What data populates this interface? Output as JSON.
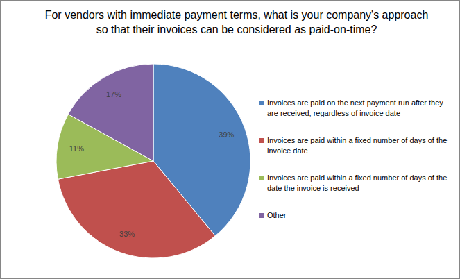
{
  "chart_data": {
    "type": "pie",
    "title": "For vendors with immediate payment terms, what is your company's approach so that their invoices can be considered as paid-on-time?",
    "categories": [
      "Invoices are paid on the next payment run after they are received, regardless of invoice date",
      "Invoices are paid within a fixed number of days of the invoice date",
      "Invoices are paid within a fixed number of days of the date the invoice is received",
      "Other"
    ],
    "values": [
      39,
      33,
      11,
      17
    ],
    "value_labels": [
      "39%",
      "33%",
      "11%",
      "17%"
    ],
    "colors": [
      "#4f81bd",
      "#c0504d",
      "#9bbb59",
      "#8064a2"
    ],
    "data_labels": true,
    "legend": "right"
  }
}
